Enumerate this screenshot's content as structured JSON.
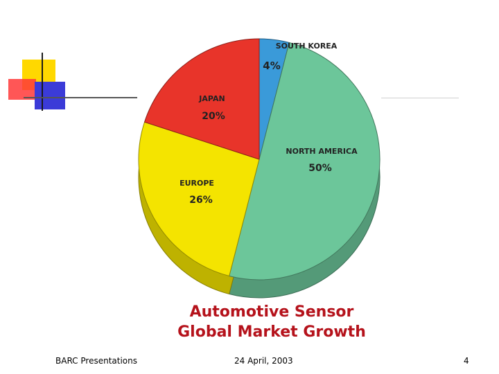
{
  "chart_data": {
    "type": "pie",
    "title": "Automotive Sensor Global Market Growth",
    "slices": [
      {
        "label": "SOUTH KOREA",
        "value": 4,
        "value_label": "4%",
        "color": "#3a9ad9"
      },
      {
        "label": "NORTH AMERICA",
        "value": 50,
        "value_label": "50%",
        "color": "#6cc69a"
      },
      {
        "label": "EUROPE",
        "value": 26,
        "value_label": "26%",
        "color": "#f4e400"
      },
      {
        "label": "JAPAN",
        "value": 20,
        "value_label": "20%",
        "color": "#e8342a"
      }
    ]
  },
  "caption": {
    "line1": "Automotive Sensor",
    "line2": "Global Market Growth"
  },
  "footer": {
    "left": "BARC Presentations",
    "center": "24 April, 2003",
    "right": "4"
  },
  "colors": {
    "caption": "#b5121b",
    "deco_yellow": "#ffd800",
    "deco_red": "#ff3838",
    "deco_blue": "#3b3bd8"
  }
}
